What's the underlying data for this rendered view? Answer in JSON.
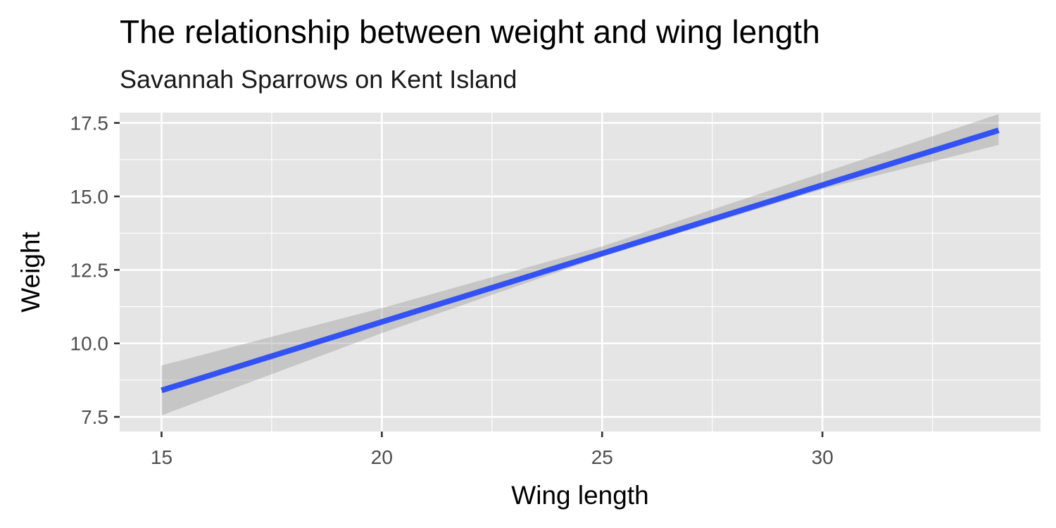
{
  "chart_data": {
    "type": "line",
    "title": "The relationship between weight and wing length",
    "subtitle": "Savannah Sparrows on Kent Island",
    "xlabel": "Wing length",
    "ylabel": "Weight",
    "xlim": [
      14.05,
      34.95
    ],
    "ylim": [
      7.0,
      17.85
    ],
    "x_ticks": [
      15,
      20,
      25,
      30
    ],
    "x_tick_labels": [
      "15",
      "20",
      "25",
      "30"
    ],
    "x_minor": [
      17.5,
      22.5,
      27.5,
      32.5
    ],
    "y_ticks": [
      7.5,
      10.0,
      12.5,
      15.0,
      17.5
    ],
    "y_tick_labels": [
      "7.5",
      "10.0",
      "12.5",
      "15.0",
      "17.5"
    ],
    "y_minor": [
      8.75,
      11.25,
      13.75,
      16.25
    ],
    "grid": true,
    "series": [
      {
        "fit": {
          "x": [
            15,
            34
          ],
          "y": [
            8.4,
            17.25
          ]
        },
        "ribbon": {
          "x": [
            15,
            20,
            25,
            30,
            34
          ],
          "lower": [
            7.55,
            10.35,
            12.95,
            15.25,
            16.75
          ],
          "upper": [
            9.25,
            11.2,
            13.3,
            15.8,
            17.8
          ]
        },
        "line_color": "#3352f5",
        "ribbon_color": "#999999"
      }
    ],
    "panel_color": "#e5e5e5",
    "grid_color": "#ffffff"
  }
}
